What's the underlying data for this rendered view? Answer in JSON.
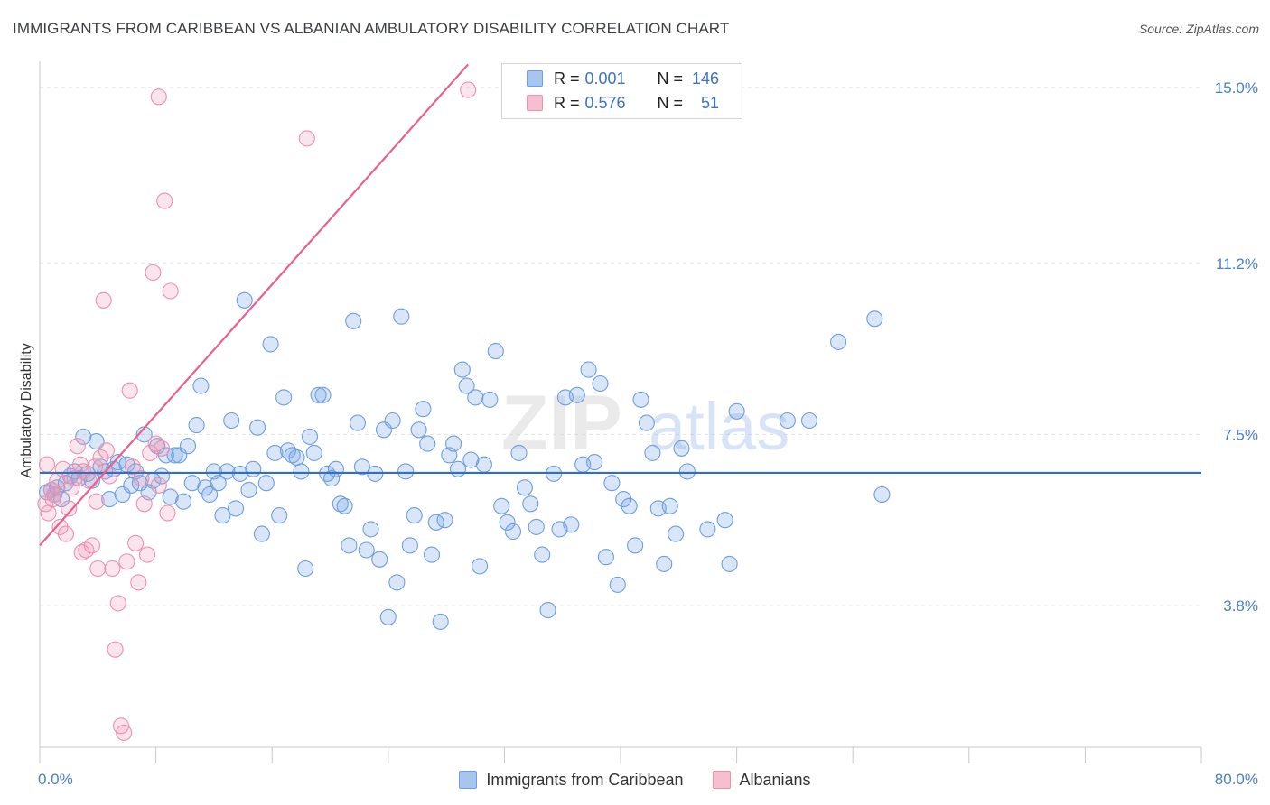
{
  "header": {
    "title": "IMMIGRANTS FROM CARIBBEAN VS ALBANIAN AMBULATORY DISABILITY CORRELATION CHART",
    "source": "Source: ZipAtlas.com"
  },
  "watermark": {
    "part1": "ZIP",
    "part2": "atlas"
  },
  "legend": {
    "rows": [
      {
        "r_label": "R = ",
        "r_value": "0.001",
        "n_label": "N = ",
        "n_value": "146",
        "color": "#a8c5ee",
        "border": "#6d9ee0"
      },
      {
        "r_label": "R = ",
        "r_value": "0.576",
        "n_label": "N = ",
        "n_value": "51",
        "color": "#f6bfd0",
        "border": "#ee8fae"
      }
    ]
  },
  "bottom_legend": {
    "items": [
      {
        "label": "Immigrants from Caribbean",
        "color": "#a8c5ee",
        "border": "#6d9ee0"
      },
      {
        "label": "Albanians",
        "color": "#f6bfd0",
        "border": "#ee8fae"
      }
    ]
  },
  "chart_data": {
    "type": "scatter",
    "title": "IMMIGRANTS FROM CARIBBEAN VS ALBANIAN AMBULATORY DISABILITY CORRELATION CHART",
    "xlabel": "",
    "ylabel": "Ambulatory Disability",
    "xlim": [
      0,
      80
    ],
    "ylim": [
      0,
      15.5
    ],
    "x_tick_labels": [
      "0.0%",
      "80.0%"
    ],
    "y_ticks": [
      3.8,
      7.5,
      11.2,
      15.0
    ],
    "y_tick_labels": [
      "3.8%",
      "7.5%",
      "11.2%",
      "15.0%"
    ],
    "grid": true,
    "series": [
      {
        "name": "Immigrants from Caribbean",
        "color": "#6d9ee0",
        "fill": "rgba(120,165,230,0.28)",
        "trend": {
          "x": [
            0,
            80
          ],
          "y": [
            6.67,
            6.67
          ],
          "color": "#2f6fc4"
        },
        "points": [
          [
            0.5,
            6.25
          ],
          [
            0.8,
            6.3
          ],
          [
            1.0,
            6.2
          ],
          [
            1.2,
            6.35
          ],
          [
            1.5,
            6.1
          ],
          [
            1.8,
            6.45
          ],
          [
            2.1,
            6.6
          ],
          [
            2.4,
            6.7
          ],
          [
            2.7,
            6.55
          ],
          [
            3.0,
            7.45
          ],
          [
            3.3,
            6.65
          ],
          [
            3.6,
            6.5
          ],
          [
            3.9,
            7.35
          ],
          [
            4.2,
            6.8
          ],
          [
            4.5,
            6.7
          ],
          [
            4.8,
            6.1
          ],
          [
            5.1,
            6.75
          ],
          [
            5.4,
            6.9
          ],
          [
            5.7,
            6.2
          ],
          [
            6.0,
            6.85
          ],
          [
            6.3,
            6.4
          ],
          [
            6.6,
            6.7
          ],
          [
            6.9,
            6.45
          ],
          [
            7.2,
            7.5
          ],
          [
            7.5,
            6.25
          ],
          [
            7.8,
            6.5
          ],
          [
            8.1,
            7.25
          ],
          [
            8.4,
            6.6
          ],
          [
            8.7,
            7.05
          ],
          [
            9.0,
            6.15
          ],
          [
            9.3,
            7.05
          ],
          [
            9.6,
            7.05
          ],
          [
            9.9,
            6.05
          ],
          [
            10.2,
            7.25
          ],
          [
            10.5,
            6.45
          ],
          [
            10.8,
            7.7
          ],
          [
            11.1,
            8.55
          ],
          [
            11.4,
            6.35
          ],
          [
            11.7,
            6.2
          ],
          [
            12.0,
            6.7
          ],
          [
            12.3,
            6.45
          ],
          [
            12.6,
            5.75
          ],
          [
            12.9,
            6.7
          ],
          [
            13.2,
            7.8
          ],
          [
            13.5,
            5.9
          ],
          [
            13.8,
            6.65
          ],
          [
            14.1,
            10.4
          ],
          [
            14.4,
            6.3
          ],
          [
            14.7,
            6.75
          ],
          [
            15.0,
            7.65
          ],
          [
            15.3,
            5.35
          ],
          [
            15.6,
            6.45
          ],
          [
            15.9,
            9.45
          ],
          [
            16.2,
            7.1
          ],
          [
            16.5,
            5.75
          ],
          [
            16.8,
            8.3
          ],
          [
            17.1,
            7.15
          ],
          [
            17.4,
            7.05
          ],
          [
            17.7,
            7.0
          ],
          [
            18.0,
            6.7
          ],
          [
            18.3,
            4.6
          ],
          [
            18.6,
            7.45
          ],
          [
            18.9,
            7.1
          ],
          [
            19.2,
            8.35
          ],
          [
            19.5,
            8.35
          ],
          [
            19.8,
            6.65
          ],
          [
            20.1,
            6.55
          ],
          [
            20.4,
            6.75
          ],
          [
            20.7,
            6.0
          ],
          [
            21.0,
            5.95
          ],
          [
            21.3,
            5.1
          ],
          [
            21.6,
            9.95
          ],
          [
            21.9,
            7.75
          ],
          [
            22.2,
            6.8
          ],
          [
            22.5,
            5.0
          ],
          [
            22.8,
            5.45
          ],
          [
            23.1,
            6.65
          ],
          [
            23.4,
            4.8
          ],
          [
            23.7,
            7.6
          ],
          [
            24.0,
            3.55
          ],
          [
            24.3,
            7.8
          ],
          [
            24.6,
            4.3
          ],
          [
            24.9,
            10.05
          ],
          [
            25.2,
            6.7
          ],
          [
            25.5,
            5.1
          ],
          [
            25.8,
            5.75
          ],
          [
            26.1,
            7.6
          ],
          [
            26.4,
            8.05
          ],
          [
            26.7,
            7.3
          ],
          [
            27.0,
            4.9
          ],
          [
            27.3,
            5.6
          ],
          [
            27.6,
            3.45
          ],
          [
            27.9,
            5.65
          ],
          [
            28.2,
            7.05
          ],
          [
            28.5,
            7.3
          ],
          [
            28.8,
            6.75
          ],
          [
            29.1,
            8.9
          ],
          [
            29.4,
            8.55
          ],
          [
            29.7,
            6.95
          ],
          [
            30.0,
            8.3
          ],
          [
            30.3,
            4.65
          ],
          [
            30.6,
            6.85
          ],
          [
            31.0,
            8.25
          ],
          [
            31.4,
            9.3
          ],
          [
            31.8,
            5.95
          ],
          [
            32.2,
            5.6
          ],
          [
            32.6,
            5.4
          ],
          [
            33.0,
            7.1
          ],
          [
            33.4,
            6.35
          ],
          [
            33.8,
            6.0
          ],
          [
            34.2,
            5.5
          ],
          [
            34.6,
            4.9
          ],
          [
            35.0,
            3.7
          ],
          [
            35.4,
            6.65
          ],
          [
            35.8,
            5.45
          ],
          [
            36.2,
            8.3
          ],
          [
            36.6,
            5.55
          ],
          [
            37.0,
            8.35
          ],
          [
            37.4,
            6.85
          ],
          [
            37.8,
            8.9
          ],
          [
            38.2,
            6.9
          ],
          [
            38.6,
            8.6
          ],
          [
            39.0,
            4.85
          ],
          [
            39.4,
            6.45
          ],
          [
            39.8,
            4.25
          ],
          [
            40.2,
            6.1
          ],
          [
            40.6,
            5.95
          ],
          [
            41.0,
            5.1
          ],
          [
            41.4,
            8.25
          ],
          [
            41.8,
            7.75
          ],
          [
            42.2,
            7.1
          ],
          [
            42.6,
            5.9
          ],
          [
            43.0,
            4.7
          ],
          [
            43.4,
            5.95
          ],
          [
            43.8,
            5.35
          ],
          [
            44.2,
            7.2
          ],
          [
            44.6,
            6.7
          ],
          [
            46.0,
            5.45
          ],
          [
            47.2,
            5.65
          ],
          [
            47.5,
            4.7
          ],
          [
            48.0,
            8.0
          ],
          [
            51.5,
            7.8
          ],
          [
            53.0,
            7.8
          ],
          [
            55.0,
            9.5
          ],
          [
            57.5,
            10.0
          ],
          [
            58.0,
            6.2
          ]
        ]
      },
      {
        "name": "Albanians",
        "color": "#ee8fae",
        "fill": "rgba(240,150,180,0.25)",
        "trend": {
          "x": [
            0,
            29.5
          ],
          "y": [
            5.1,
            15.5
          ],
          "color": "#e8618c"
        },
        "points": [
          [
            0.4,
            6.0
          ],
          [
            0.6,
            5.8
          ],
          [
            0.8,
            6.3
          ],
          [
            1.0,
            6.2
          ],
          [
            1.2,
            6.5
          ],
          [
            1.4,
            5.5
          ],
          [
            1.6,
            6.75
          ],
          [
            1.8,
            5.35
          ],
          [
            2.0,
            5.9
          ],
          [
            2.2,
            6.35
          ],
          [
            2.4,
            6.55
          ],
          [
            2.6,
            7.25
          ],
          [
            2.8,
            6.85
          ],
          [
            3.0,
            6.7
          ],
          [
            3.2,
            5.0
          ],
          [
            3.4,
            6.5
          ],
          [
            3.6,
            5.1
          ],
          [
            3.8,
            6.8
          ],
          [
            4.0,
            4.6
          ],
          [
            4.2,
            7.0
          ],
          [
            4.4,
            10.4
          ],
          [
            4.6,
            7.15
          ],
          [
            4.8,
            6.6
          ],
          [
            5.0,
            4.6
          ],
          [
            5.2,
            2.85
          ],
          [
            5.4,
            3.85
          ],
          [
            5.6,
            1.2
          ],
          [
            5.8,
            1.05
          ],
          [
            6.0,
            4.75
          ],
          [
            6.2,
            8.45
          ],
          [
            6.4,
            6.8
          ],
          [
            6.6,
            5.15
          ],
          [
            6.8,
            4.3
          ],
          [
            7.0,
            6.55
          ],
          [
            7.2,
            6.0
          ],
          [
            7.4,
            4.9
          ],
          [
            7.6,
            7.1
          ],
          [
            7.8,
            11.0
          ],
          [
            8.0,
            7.3
          ],
          [
            8.2,
            6.4
          ],
          [
            8.4,
            7.2
          ],
          [
            8.6,
            12.55
          ],
          [
            8.8,
            5.8
          ],
          [
            9.0,
            10.6
          ],
          [
            0.5,
            6.85
          ],
          [
            0.9,
            6.1
          ],
          [
            2.9,
            4.95
          ],
          [
            3.9,
            6.05
          ],
          [
            8.2,
            14.8
          ],
          [
            18.4,
            13.9
          ],
          [
            29.5,
            14.95
          ]
        ]
      }
    ]
  }
}
